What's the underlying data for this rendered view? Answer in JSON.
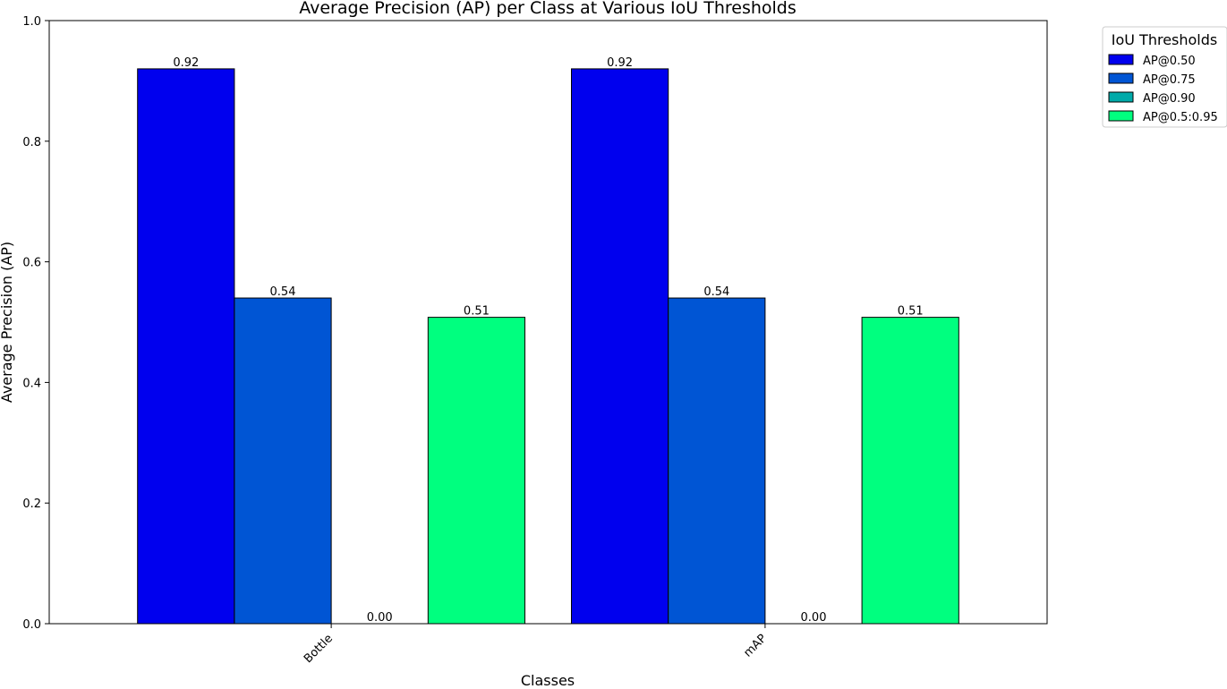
{
  "chart_data": {
    "type": "bar",
    "title": "Average Precision (AP) per Class at Various IoU Thresholds",
    "xlabel": "Classes",
    "ylabel": "Average Precision (AP)",
    "ylim": [
      0,
      1.0
    ],
    "yticks": [
      "0.0",
      "0.2",
      "0.4",
      "0.6",
      "0.8",
      "1.0"
    ],
    "categories": [
      "Bottle",
      "mAP"
    ],
    "legend_title": "IoU Thresholds",
    "legend_position": "outside-top-right",
    "grid": false,
    "series": [
      {
        "name": "AP@0.50",
        "color": "#0000ee",
        "values": [
          0.92,
          0.92
        ],
        "labels": [
          "0.92",
          "0.92"
        ]
      },
      {
        "name": "AP@0.75",
        "color": "#0055d4",
        "values": [
          0.54,
          0.54
        ],
        "labels": [
          "0.54",
          "0.54"
        ]
      },
      {
        "name": "AP@0.90",
        "color": "#00aaa9",
        "values": [
          0.0,
          0.0
        ],
        "labels": [
          "0.00",
          "0.00"
        ]
      },
      {
        "name": "AP@0.5:0.95",
        "color": "#00ff7f",
        "values": [
          0.508,
          0.508
        ],
        "labels": [
          "0.51",
          "0.51"
        ]
      }
    ]
  }
}
